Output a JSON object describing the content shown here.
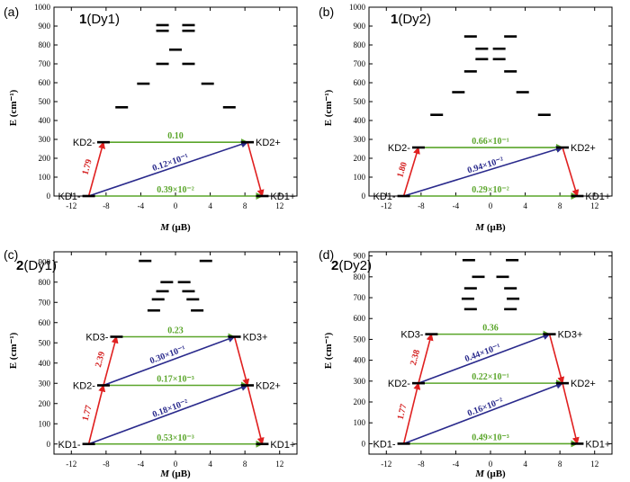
{
  "colors": {
    "green": "#5aa52a",
    "blue": "#2a2a8c",
    "red": "#e02020",
    "level": "#000000"
  },
  "chart_data": [
    {
      "type": "energy-level-diagram",
      "panel_label": "(a)",
      "title_prefix": "1",
      "title_suffix": "(Dy1)",
      "xlabel": "M",
      "xlabel_sub": "(μB)",
      "ylabel": "E (cm⁻¹)",
      "xlim": [
        -14,
        14
      ],
      "ylim": [
        0,
        1000
      ],
      "xticks": [
        -12,
        -8,
        -4,
        0,
        4,
        8,
        12
      ],
      "xtick_labels": [
        "-12",
        "-8",
        "-4",
        "0",
        "4",
        "8",
        "12"
      ],
      "yticks": [
        0,
        100,
        200,
        300,
        400,
        500,
        600,
        700,
        800,
        900,
        1000
      ],
      "ytick_labels": [
        "0",
        "100",
        "200",
        "300",
        "400",
        "500",
        "600",
        "700",
        "800",
        "900",
        "1000"
      ],
      "levels": [
        {
          "x": -10,
          "E": 0
        },
        {
          "x": 10,
          "E": 0
        },
        {
          "x": -8.3,
          "E": 285
        },
        {
          "x": 8.3,
          "E": 285
        },
        {
          "x": -6.2,
          "E": 470
        },
        {
          "x": 6.2,
          "E": 470
        },
        {
          "x": -3.7,
          "E": 595
        },
        {
          "x": 3.7,
          "E": 595
        },
        {
          "x": -1.5,
          "E": 700
        },
        {
          "x": 1.5,
          "E": 700
        },
        {
          "x": 0,
          "E": 775
        },
        {
          "x": -1.5,
          "E": 875
        },
        {
          "x": 1.5,
          "E": 875
        },
        {
          "x": -1.5,
          "E": 905
        },
        {
          "x": 1.5,
          "E": 905
        }
      ],
      "state_labels": [
        {
          "text": "KD1-",
          "x": -10,
          "E": 0,
          "side": "left"
        },
        {
          "text": "KD1+",
          "x": 10,
          "E": 0,
          "side": "right"
        },
        {
          "text": "KD2-",
          "x": -8.3,
          "E": 285,
          "side": "left"
        },
        {
          "text": "KD2+",
          "x": 8.3,
          "E": 285,
          "side": "right"
        }
      ],
      "transitions": [
        {
          "type": "green",
          "from": [
            -10,
            0
          ],
          "to": [
            10,
            0
          ],
          "label": "0.39×10⁻²",
          "label_at": [
            0,
            0
          ]
        },
        {
          "type": "green",
          "from": [
            -8.3,
            285
          ],
          "to": [
            8.3,
            285
          ],
          "label": "0.10",
          "label_at": [
            0,
            285
          ]
        },
        {
          "type": "blue",
          "from": [
            -10,
            0
          ],
          "to": [
            8.3,
            285
          ],
          "label": "0.12×10⁻¹",
          "label_at": [
            -0.5,
            155
          ]
        },
        {
          "type": "red",
          "from": [
            -10,
            0
          ],
          "to": [
            -8.3,
            285
          ],
          "label": "1.79",
          "label_at": [
            -9.9,
            150
          ]
        },
        {
          "type": "red",
          "from": [
            8.3,
            285
          ],
          "to": [
            10,
            0
          ],
          "label": "",
          "label_at": [
            0,
            0
          ]
        }
      ]
    },
    {
      "type": "energy-level-diagram",
      "panel_label": "(b)",
      "title_prefix": "1",
      "title_suffix": "(Dy2)",
      "xlabel": "M",
      "xlabel_sub": "(μB)",
      "ylabel": "E (cm⁻¹)",
      "xlim": [
        -14,
        14
      ],
      "ylim": [
        0,
        1000
      ],
      "xticks": [
        -12,
        -8,
        -4,
        0,
        4,
        8,
        12
      ],
      "xtick_labels": [
        "-12",
        "-8",
        "-4",
        "0",
        "4",
        "8",
        "12"
      ],
      "yticks": [
        0,
        100,
        200,
        300,
        400,
        500,
        600,
        700,
        800,
        900,
        1000
      ],
      "ytick_labels": [
        "0",
        "100",
        "200",
        "300",
        "400",
        "500",
        "600",
        "700",
        "800",
        "900",
        "1000"
      ],
      "levels": [
        {
          "x": -10,
          "E": 0
        },
        {
          "x": 10,
          "E": 0
        },
        {
          "x": -8.3,
          "E": 257
        },
        {
          "x": 8.3,
          "E": 257
        },
        {
          "x": -6.2,
          "E": 430
        },
        {
          "x": 6.2,
          "E": 430
        },
        {
          "x": -3.7,
          "E": 550
        },
        {
          "x": 3.7,
          "E": 550
        },
        {
          "x": -2.3,
          "E": 660
        },
        {
          "x": 2.3,
          "E": 660
        },
        {
          "x": -1,
          "E": 725
        },
        {
          "x": 1,
          "E": 725
        },
        {
          "x": -1,
          "E": 780
        },
        {
          "x": 1,
          "E": 780
        },
        {
          "x": -2.3,
          "E": 845
        },
        {
          "x": 2.3,
          "E": 845
        }
      ],
      "state_labels": [
        {
          "text": "KD1-",
          "x": -10,
          "E": 0,
          "side": "left"
        },
        {
          "text": "KD1+",
          "x": 10,
          "E": 0,
          "side": "right"
        },
        {
          "text": "KD2-",
          "x": -8.3,
          "E": 257,
          "side": "left"
        },
        {
          "text": "KD2+",
          "x": 8.3,
          "E": 257,
          "side": "right"
        }
      ],
      "transitions": [
        {
          "type": "green",
          "from": [
            -10,
            0
          ],
          "to": [
            10,
            0
          ],
          "label": "0.29×10⁻²",
          "label_at": [
            0,
            0
          ]
        },
        {
          "type": "green",
          "from": [
            -8.3,
            257
          ],
          "to": [
            8.3,
            257
          ],
          "label": "0.66×10⁻¹",
          "label_at": [
            0,
            257
          ]
        },
        {
          "type": "blue",
          "from": [
            -10,
            0
          ],
          "to": [
            8.3,
            257
          ],
          "label": "0.94×10⁻²",
          "label_at": [
            -0.5,
            140
          ]
        },
        {
          "type": "red",
          "from": [
            -10,
            0
          ],
          "to": [
            -8.3,
            257
          ],
          "label": "1.80",
          "label_at": [
            -9.9,
            135
          ]
        },
        {
          "type": "red",
          "from": [
            8.3,
            257
          ],
          "to": [
            10,
            0
          ],
          "label": "",
          "label_at": [
            0,
            0
          ]
        }
      ]
    },
    {
      "type": "energy-level-diagram",
      "panel_label": "(c)",
      "title_prefix": "2",
      "title_suffix": "(Dy1)",
      "xlabel": "M",
      "xlabel_sub": "(μB)",
      "ylabel": "E (cm⁻¹)",
      "xlim": [
        -14,
        14
      ],
      "ylim": [
        -50,
        950
      ],
      "xticks": [
        -12,
        -8,
        -4,
        0,
        4,
        8,
        12
      ],
      "xtick_labels": [
        "-12",
        "-8",
        "-4",
        "0",
        "4",
        "8",
        "12"
      ],
      "yticks": [
        0,
        100,
        200,
        300,
        400,
        500,
        600,
        700,
        800,
        900
      ],
      "ytick_labels": [
        "0",
        "100",
        "200",
        "300",
        "400",
        "500",
        "600",
        "700",
        "800",
        "900"
      ],
      "levels": [
        {
          "x": -10,
          "E": 0
        },
        {
          "x": 10,
          "E": 0
        },
        {
          "x": -8.3,
          "E": 290
        },
        {
          "x": 8.3,
          "E": 290
        },
        {
          "x": -6.8,
          "E": 530
        },
        {
          "x": 6.8,
          "E": 530
        },
        {
          "x": -2.5,
          "E": 660
        },
        {
          "x": 2.5,
          "E": 660
        },
        {
          "x": -2,
          "E": 715
        },
        {
          "x": 2,
          "E": 715
        },
        {
          "x": -1.5,
          "E": 755
        },
        {
          "x": 1.5,
          "E": 755
        },
        {
          "x": -1,
          "E": 800
        },
        {
          "x": 1,
          "E": 800
        },
        {
          "x": -3.5,
          "E": 905
        },
        {
          "x": 3.5,
          "E": 905
        }
      ],
      "state_labels": [
        {
          "text": "KD1-",
          "x": -10,
          "E": 0,
          "side": "left"
        },
        {
          "text": "KD1+",
          "x": 10,
          "E": 0,
          "side": "right"
        },
        {
          "text": "KD2-",
          "x": -8.3,
          "E": 290,
          "side": "left"
        },
        {
          "text": "KD2+",
          "x": 8.3,
          "E": 290,
          "side": "right"
        },
        {
          "text": "KD3-",
          "x": -6.8,
          "E": 530,
          "side": "left"
        },
        {
          "text": "KD3+",
          "x": 6.8,
          "E": 530,
          "side": "right"
        }
      ],
      "transitions": [
        {
          "type": "green",
          "from": [
            -10,
            0
          ],
          "to": [
            10,
            0
          ],
          "label": "0.53×10⁻³",
          "label_at": [
            0,
            0
          ]
        },
        {
          "type": "green",
          "from": [
            -8.3,
            290
          ],
          "to": [
            8.3,
            290
          ],
          "label": "0.17×10⁻³",
          "label_at": [
            0,
            290
          ]
        },
        {
          "type": "green",
          "from": [
            -6.8,
            530
          ],
          "to": [
            6.8,
            530
          ],
          "label": "0.23",
          "label_at": [
            0,
            530
          ]
        },
        {
          "type": "blue",
          "from": [
            -10,
            0
          ],
          "to": [
            8.3,
            290
          ],
          "label": "0.18×10⁻²",
          "label_at": [
            -0.5,
            155
          ]
        },
        {
          "type": "blue",
          "from": [
            -8.3,
            290
          ],
          "to": [
            6.8,
            530
          ],
          "label": "0.30×10⁻¹",
          "label_at": [
            -0.8,
            420
          ]
        },
        {
          "type": "red",
          "from": [
            -10,
            0
          ],
          "to": [
            -8.3,
            290
          ],
          "label": "1.77",
          "label_at": [
            -9.9,
            150
          ]
        },
        {
          "type": "red",
          "from": [
            -8.3,
            290
          ],
          "to": [
            -6.8,
            530
          ],
          "label": "2.39",
          "label_at": [
            -8.4,
            415
          ]
        },
        {
          "type": "red",
          "from": [
            6.8,
            530
          ],
          "to": [
            8.3,
            290
          ],
          "label": "",
          "label_at": [
            0,
            0
          ]
        },
        {
          "type": "red",
          "from": [
            8.3,
            290
          ],
          "to": [
            10,
            0
          ],
          "label": "",
          "label_at": [
            0,
            0
          ]
        }
      ]
    },
    {
      "type": "energy-level-diagram",
      "panel_label": "(d)",
      "title_prefix": "2",
      "title_suffix": "(Dy2)",
      "xlabel": "M",
      "xlabel_sub": "(μB)",
      "ylabel": "E (cm⁻¹)",
      "xlim": [
        -14,
        14
      ],
      "ylim": [
        -50,
        920
      ],
      "xticks": [
        -12,
        -8,
        -4,
        0,
        4,
        8,
        12
      ],
      "xtick_labels": [
        "-12",
        "-8",
        "-4",
        "0",
        "4",
        "8",
        "12"
      ],
      "yticks": [
        0,
        100,
        200,
        300,
        400,
        500,
        600,
        700,
        800,
        900
      ],
      "ytick_labels": [
        "0",
        "100",
        "200",
        "300",
        "400",
        "500",
        "600",
        "700",
        "800",
        "900"
      ],
      "levels": [
        {
          "x": -10,
          "E": 0
        },
        {
          "x": 10,
          "E": 0
        },
        {
          "x": -8.3,
          "E": 290
        },
        {
          "x": 8.3,
          "E": 290
        },
        {
          "x": -6.8,
          "E": 525
        },
        {
          "x": 6.8,
          "E": 525
        },
        {
          "x": -2.3,
          "E": 645
        },
        {
          "x": 2.3,
          "E": 645
        },
        {
          "x": -2.6,
          "E": 695
        },
        {
          "x": 2.6,
          "E": 695
        },
        {
          "x": -2.3,
          "E": 745
        },
        {
          "x": 2.3,
          "E": 745
        },
        {
          "x": -1.4,
          "E": 800
        },
        {
          "x": 1.4,
          "E": 800
        },
        {
          "x": -2.5,
          "E": 880
        },
        {
          "x": 2.5,
          "E": 880
        }
      ],
      "state_labels": [
        {
          "text": "KD1-",
          "x": -10,
          "E": 0,
          "side": "left"
        },
        {
          "text": "KD1+",
          "x": 10,
          "E": 0,
          "side": "right"
        },
        {
          "text": "KD2-",
          "x": -8.3,
          "E": 290,
          "side": "left"
        },
        {
          "text": "KD2+",
          "x": 8.3,
          "E": 290,
          "side": "right"
        },
        {
          "text": "KD3-",
          "x": -6.8,
          "E": 525,
          "side": "left"
        },
        {
          "text": "KD3+",
          "x": 6.8,
          "E": 525,
          "side": "right"
        }
      ],
      "transitions": [
        {
          "type": "green",
          "from": [
            -10,
            0
          ],
          "to": [
            10,
            0
          ],
          "label": "0.49×10⁻³",
          "label_at": [
            0,
            0
          ]
        },
        {
          "type": "green",
          "from": [
            -8.3,
            290
          ],
          "to": [
            8.3,
            290
          ],
          "label": "0.22×10⁻¹",
          "label_at": [
            0,
            290
          ]
        },
        {
          "type": "green",
          "from": [
            -6.8,
            525
          ],
          "to": [
            6.8,
            525
          ],
          "label": "0.36",
          "label_at": [
            0,
            525
          ]
        },
        {
          "type": "blue",
          "from": [
            -10,
            0
          ],
          "to": [
            8.3,
            290
          ],
          "label": "0.16×10⁻²",
          "label_at": [
            -0.5,
            155
          ]
        },
        {
          "type": "blue",
          "from": [
            -8.3,
            290
          ],
          "to": [
            6.8,
            525
          ],
          "label": "0.44×10⁻¹",
          "label_at": [
            -0.8,
            415
          ]
        },
        {
          "type": "red",
          "from": [
            -10,
            0
          ],
          "to": [
            -8.3,
            290
          ],
          "label": "1.77",
          "label_at": [
            -9.9,
            150
          ]
        },
        {
          "type": "red",
          "from": [
            -8.3,
            290
          ],
          "to": [
            -6.8,
            525
          ],
          "label": "2.38",
          "label_at": [
            -8.4,
            410
          ]
        },
        {
          "type": "red",
          "from": [
            6.8,
            525
          ],
          "to": [
            8.3,
            290
          ],
          "label": "",
          "label_at": [
            0,
            0
          ]
        },
        {
          "type": "red",
          "from": [
            8.3,
            290
          ],
          "to": [
            10,
            0
          ],
          "label": "",
          "label_at": [
            0,
            0
          ]
        }
      ]
    }
  ]
}
